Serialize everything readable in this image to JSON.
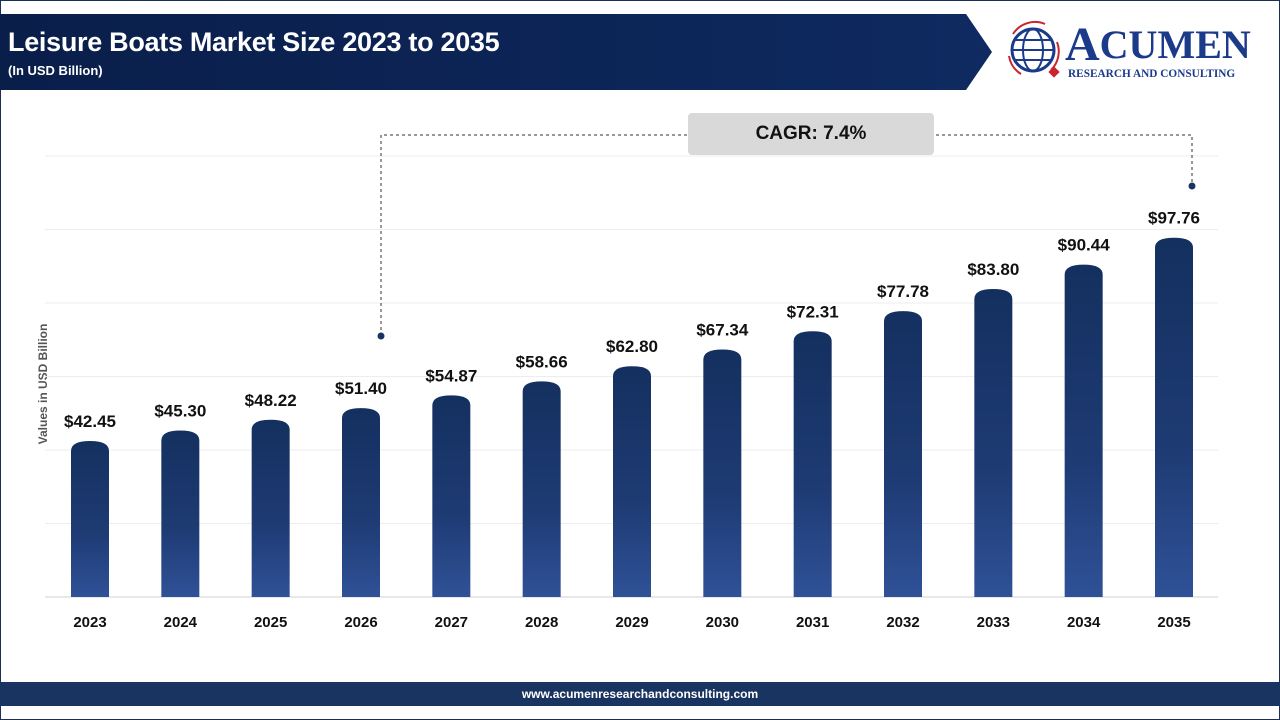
{
  "header": {
    "title": "Leisure Boats Market Size 2023 to 2035",
    "subtitle": "(In USD Billion)"
  },
  "logo": {
    "word_initial": "A",
    "word_rest": "CUMEN",
    "tagline": "RESEARCH AND CONSULTING"
  },
  "footer": {
    "url": "www.acumenresearchandconsulting.com"
  },
  "colors": {
    "banner": "#0b2150",
    "bar_top": "#14305f",
    "bar_bottom": "#2f5197",
    "footer": "#1a3461",
    "cagr_box": "#d9d9d9"
  },
  "chart_data": {
    "type": "bar",
    "title": "Leisure Boats Market Size 2023 to 2035",
    "subtitle": "(In USD Billion)",
    "xlabel": "",
    "ylabel": "Values in USD Billion",
    "categories": [
      "2023",
      "2024",
      "2025",
      "2026",
      "2027",
      "2028",
      "2029",
      "2030",
      "2031",
      "2032",
      "2033",
      "2034",
      "2035"
    ],
    "values": [
      42.45,
      45.3,
      48.22,
      51.4,
      54.87,
      58.66,
      62.8,
      67.34,
      72.31,
      77.78,
      83.8,
      90.44,
      97.76
    ],
    "data_labels": [
      "$42.45",
      "$45.30",
      "$48.22",
      "$51.40",
      "$54.87",
      "$58.66",
      "$62.80",
      "$67.34",
      "$72.31",
      "$77.78",
      "$83.80",
      "$90.44",
      "$97.76"
    ],
    "ylim": [
      0,
      120
    ],
    "grid": true,
    "grid_step": 20,
    "annotation": {
      "text": "CAGR: 7.4%",
      "from_category": "2026",
      "to_category": "2035"
    }
  }
}
